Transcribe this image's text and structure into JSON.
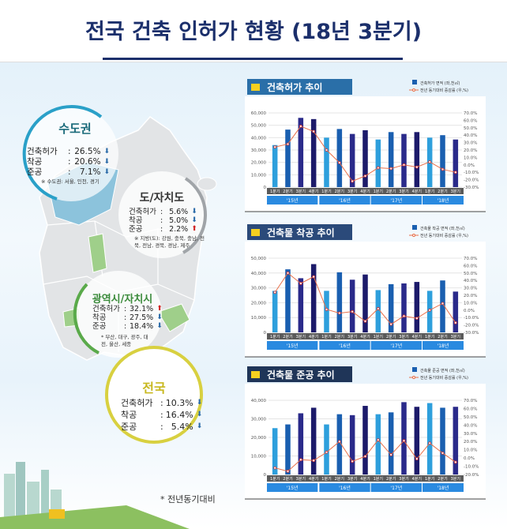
{
  "header": {
    "title": "전국 건축 인허가 현황 (18년 3분기)"
  },
  "regions": {
    "capital": {
      "title": "수도권",
      "stats": [
        {
          "label": "건축허가",
          "value": "26.5%",
          "trend": "down"
        },
        {
          "label": "착공",
          "value": "20.6%",
          "trend": "down"
        },
        {
          "label": "준공",
          "value": "7.1%",
          "trend": "down"
        }
      ],
      "note": "※ 수도권: 서울, 인천, 경기"
    },
    "provinces": {
      "title": "도/자치도",
      "stats": [
        {
          "label": "건축허가",
          "value": "5.6%",
          "trend": "down"
        },
        {
          "label": "착공",
          "value": "5.0%",
          "trend": "down"
        },
        {
          "label": "준공",
          "value": "2.2%",
          "trend": "up"
        }
      ],
      "note": "※ 지방(도): 강원, 충북, 충남, 전북, 전남, 경북, 경남, 제주"
    },
    "metro": {
      "title": "광역시/자치시",
      "stats": [
        {
          "label": "건축허가",
          "value": "32.1%",
          "trend": "up"
        },
        {
          "label": "착공",
          "value": "27.5%",
          "trend": "down"
        },
        {
          "label": "준공",
          "value": "18.4%",
          "trend": "down"
        }
      ],
      "note": "* 부산, 대구, 광주, 대전, 울산, 세종"
    },
    "national": {
      "title": "전국",
      "stats": [
        {
          "label": "건축허가",
          "value": "10.3%",
          "trend": "down"
        },
        {
          "label": "착공",
          "value": "16.4%",
          "trend": "down"
        },
        {
          "label": "준공",
          "value": "5.4%",
          "trend": "down"
        }
      ]
    }
  },
  "footnote": "* 전년동기대비",
  "colors": {
    "title": "#1b2f6b",
    "q1": "#2e9fdc",
    "q2": "#1a5fb0",
    "q3": "#2a2a8a",
    "q4": "#1c1a6a",
    "line": "#e8704a",
    "year_strip": "#2a8ae0",
    "quarter_strip": "#5a5a5a",
    "up": "#d02020",
    "down": "#2a6aa8"
  },
  "chart_data": [
    {
      "type": "bar+line",
      "title": "건축허가 추이",
      "categories": [
        "1분기",
        "2분기",
        "3분기",
        "4분기",
        "1분기",
        "2분기",
        "3분기",
        "4분기",
        "1분기",
        "2분기",
        "3분기",
        "4분기",
        "1분기",
        "2분기",
        "3분기"
      ],
      "years": [
        "'15년",
        "'16년",
        "'17년",
        "'18년"
      ],
      "series": [
        {
          "name": "건축허가 면적 (좌,천㎡)",
          "type": "bar",
          "values": [
            34000,
            46500,
            56000,
            55000,
            40000,
            47000,
            43000,
            46000,
            38500,
            44500,
            43000,
            44500,
            40000,
            42000,
            38500
          ]
        },
        {
          "name": "전년 동기대비 증감률 (우,%)",
          "type": "line",
          "values": [
            24,
            28,
            52,
            45,
            20,
            3,
            -22,
            -15,
            -4,
            -5,
            0,
            -3,
            4,
            -6,
            -10
          ]
        }
      ],
      "ylim": [
        0,
        60000
      ],
      "yticks": [
        "0",
        "10,000",
        "20,000",
        "30,000",
        "40,000",
        "50,000",
        "60,000"
      ],
      "y2lim": [
        -30,
        70
      ],
      "y2ticks": [
        "-30.0%",
        "-20.0%",
        "-10.0%",
        "0.0%",
        "10.0%",
        "20.0%",
        "30.0%",
        "40.0%",
        "50.0%",
        "60.0%",
        "70.0%"
      ],
      "banner": "#2a6fa8"
    },
    {
      "type": "bar+line",
      "title": "건축물 착공 추이",
      "categories": [
        "1분기",
        "2분기",
        "3분기",
        "4분기",
        "1분기",
        "2분기",
        "3분기",
        "4분기",
        "1분기",
        "2분기",
        "3분기",
        "4분기",
        "1분기",
        "2분기",
        "3분기"
      ],
      "years": [
        "'15년",
        "'16년",
        "'17년",
        "'18년"
      ],
      "series": [
        {
          "name": "건축물 착공 면적 (좌,천㎡)",
          "type": "bar",
          "values": [
            28000,
            42500,
            36500,
            46000,
            28000,
            40500,
            35500,
            39000,
            28500,
            32500,
            33000,
            34000,
            28000,
            35000,
            27500
          ]
        },
        {
          "name": "전년 동기대비 증감률 (우,%)",
          "type": "line",
          "values": [
            24,
            50,
            36,
            45,
            1,
            -4,
            -2,
            -15,
            2,
            -19,
            -8,
            -11,
            0,
            9,
            -17
          ]
        }
      ],
      "ylim": [
        0,
        50000
      ],
      "yticks": [
        "0",
        "10,000",
        "20,000",
        "30,000",
        "40,000",
        "50,000"
      ],
      "y2lim": [
        -30,
        70
      ],
      "y2ticks": [
        "-30.0%",
        "-20.0%",
        "-10.0%",
        "0.0%",
        "10.0%",
        "20.0%",
        "30.0%",
        "40.0%",
        "50.0%",
        "60.0%",
        "70.0%"
      ],
      "banner": "#2b4a7a"
    },
    {
      "type": "bar+line",
      "title": "건축물 준공 추이",
      "categories": [
        "1분기",
        "2분기",
        "3분기",
        "4분기",
        "1분기",
        "2분기",
        "3분기",
        "4분기",
        "1분기",
        "2분기",
        "3분기",
        "4분기",
        "1분기",
        "2분기",
        "3분기"
      ],
      "years": [
        "'15년",
        "'16년",
        "'17년",
        "'18년"
      ],
      "series": [
        {
          "name": "건축물 준공 면적 (좌,천㎡)",
          "type": "bar",
          "values": [
            25000,
            27000,
            33000,
            36000,
            27000,
            32500,
            32000,
            37000,
            32500,
            33500,
            39000,
            36500,
            38500,
            36000,
            36500
          ]
        },
        {
          "name": "전년 동기대비 증감률 (우,%)",
          "type": "line",
          "values": [
            -12,
            -16,
            -2,
            -3,
            7,
            20,
            -4,
            2,
            22,
            4,
            21,
            -1,
            18,
            6,
            -5
          ]
        }
      ],
      "ylim": [
        0,
        40000
      ],
      "yticks": [
        "0",
        "10,000",
        "20,000",
        "30,000",
        "40,000"
      ],
      "y2lim": [
        -20,
        70
      ],
      "y2ticks": [
        "-20.0%",
        "-10.0%",
        "0.0%",
        "10.0%",
        "20.0%",
        "30.0%",
        "40.0%",
        "50.0%",
        "60.0%",
        "70.0%"
      ],
      "banner": "#1f3558"
    }
  ]
}
